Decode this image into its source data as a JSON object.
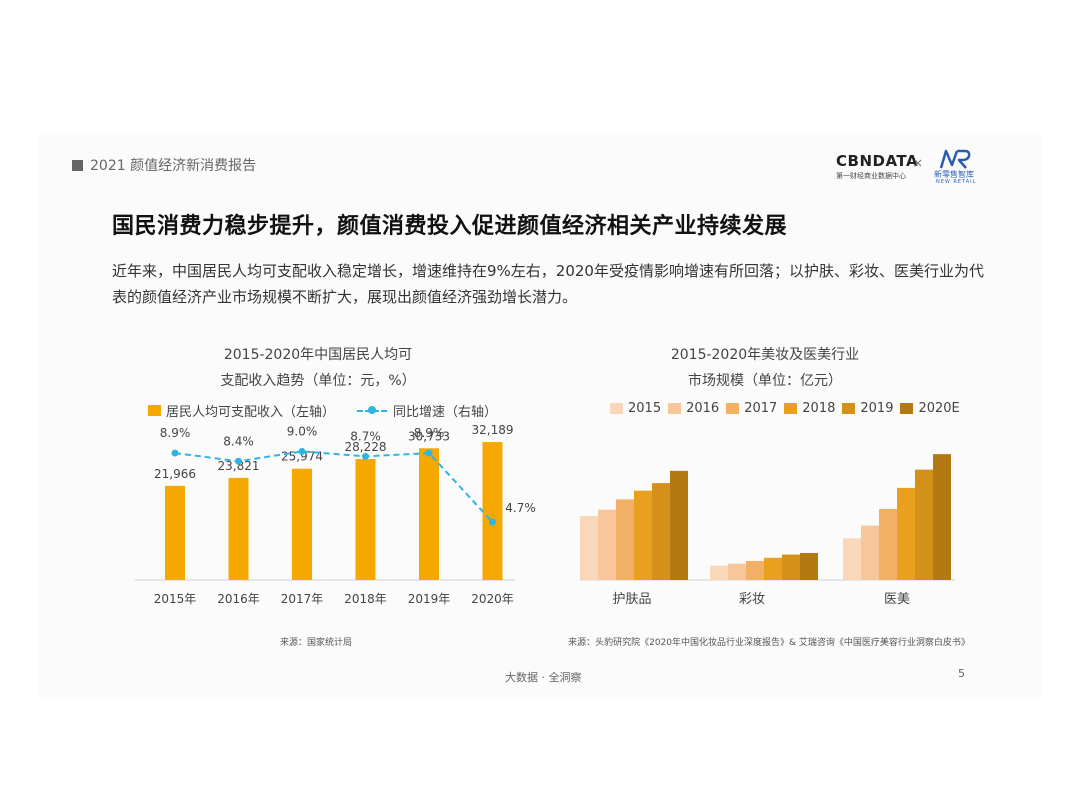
{
  "report_tag": "2021 颜值经济新消费报告",
  "brand": {
    "cbn": "CBNDATA",
    "cbn_sub": "第一财经商业数据中心",
    "times": "×",
    "nr_name": "新零售智库",
    "nr_sub": "NEW RETAIL"
  },
  "headline": "国民消费力稳步提升，颜值消费投入促进颜值经济相关产业持续发展",
  "body_text": "近年来，中国居民人均可支配收入稳定增长，增速维持在9%左右，2020年受疫情影响增速有所回落；以护肤、彩妆、医美行业为代表的颜值经济产业市场规模不断扩大，展现出颜值经济强劲增长潜力。",
  "colors": {
    "bar_orange": "#f5a800",
    "line_blue": "#2fb5e5",
    "year_colors": [
      "#f9d7b9",
      "#f7c69a",
      "#f2b066",
      "#e9a01e",
      "#d4911a",
      "#b37a14"
    ]
  },
  "chart_data": [
    {
      "type": "bar",
      "title_line1": "2015-2020年中国居民人均可",
      "title_line2": "支配收入趋势（单位：元，%）",
      "legend_bar": "居民人均可支配收入（左轴）",
      "legend_line": "同比增速（右轴）",
      "categories": [
        "2015年",
        "2016年",
        "2017年",
        "2018年",
        "2019年",
        "2020年"
      ],
      "values": [
        21966,
        23821,
        25974,
        28228,
        30733,
        32189
      ],
      "value_labels": [
        "21,966",
        "23,821",
        "25,974",
        "28,228",
        "30,733",
        "32,189"
      ],
      "growth": [
        8.9,
        8.4,
        9.0,
        8.7,
        8.9,
        4.7
      ],
      "growth_labels": [
        "8.9%",
        "8.4%",
        "9.0%",
        "8.7%",
        "8.9%",
        "4.7%"
      ],
      "ylim": [
        0,
        35000
      ],
      "y2lim": [
        0,
        10
      ],
      "source": "来源：国家统计局"
    },
    {
      "type": "bar",
      "title_line1": "2015-2020年美妆及医美行业",
      "title_line2": "市场规模（单位：亿元）",
      "categories": [
        "护肤品",
        "彩妆",
        "医美"
      ],
      "series": [
        {
          "name": "2015",
          "values": [
            1610,
            360,
            1050
          ]
        },
        {
          "name": "2016",
          "values": [
            1770,
            410,
            1370
          ]
        },
        {
          "name": "2017",
          "values": [
            2030,
            480,
            1790
          ]
        },
        {
          "name": "2018",
          "values": [
            2250,
            560,
            2320
          ]
        },
        {
          "name": "2019",
          "values": [
            2440,
            640,
            2780
          ]
        },
        {
          "name": "2020E",
          "values": [
            2750,
            680,
            3170
          ]
        }
      ],
      "ylim": [
        0,
        3400
      ],
      "source": "来源：头豹研究院《2020年中国化妆品行业深度报告》& 艾瑞咨询《中国医疗美容行业洞察白皮书》"
    }
  ],
  "footer": "大数据 · 全洞察",
  "page_number": "5"
}
